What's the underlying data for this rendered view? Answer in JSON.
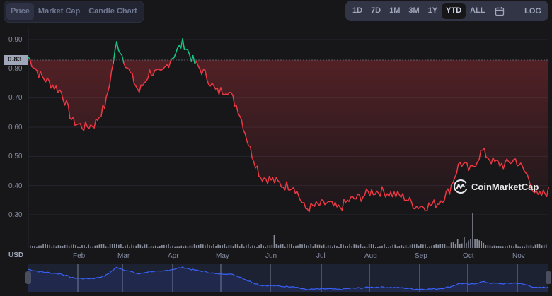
{
  "tabs": [
    {
      "label": "Price",
      "active": true
    },
    {
      "label": "Market Cap",
      "active": false
    },
    {
      "label": "Candle Chart",
      "active": false
    }
  ],
  "ranges": [
    {
      "label": "1D",
      "active": false
    },
    {
      "label": "7D",
      "active": false
    },
    {
      "label": "1M",
      "active": false
    },
    {
      "label": "3M",
      "active": false
    },
    {
      "label": "1Y",
      "active": false
    },
    {
      "label": "YTD",
      "active": true
    },
    {
      "label": "ALL",
      "active": false
    }
  ],
  "calendar_icon": "calendar-icon",
  "log_label": "LOG",
  "current_price_tag": "0.83",
  "currency_label": "USD",
  "watermark": "CoinMarketCap",
  "colors": {
    "up": "#16c784",
    "down": "#ea3943",
    "navigator_line": "#3861fb",
    "background": "#17171a"
  },
  "chart_data": {
    "type": "line",
    "title": "",
    "xlabel": "",
    "ylabel": "USD",
    "ylim": [
      0.28,
      0.92
    ],
    "yticks": [
      "0.90",
      "0.80",
      "0.70",
      "0.60",
      "0.50",
      "0.40",
      "0.30"
    ],
    "xticks": [
      "Feb",
      "Mar",
      "Apr",
      "May",
      "Jun",
      "Jul",
      "Aug",
      "Sep",
      "Oct",
      "Nov"
    ],
    "reference_price": 0.83,
    "grid": true,
    "legend": "none",
    "x": [
      "Jan 1",
      "Jan 8",
      "Jan 15",
      "Jan 22",
      "Jan 29",
      "Feb 5",
      "Feb 12",
      "Feb 19",
      "Feb 26",
      "Mar 5",
      "Mar 12",
      "Mar 19",
      "Mar 26",
      "Apr 2",
      "Apr 9",
      "Apr 16",
      "Apr 23",
      "Apr 30",
      "May 7",
      "May 12",
      "May 20",
      "May 27",
      "Jun 3",
      "Jun 10",
      "Jun 17",
      "Jun 24",
      "Jul 1",
      "Jul 8",
      "Jul 15",
      "Jul 22",
      "Jul 29",
      "Aug 5",
      "Aug 12",
      "Aug 19",
      "Aug 26",
      "Sep 2",
      "Sep 9",
      "Sep 16",
      "Sep 23",
      "Sep 27",
      "Oct 4",
      "Oct 11",
      "Oct 18",
      "Oct 25",
      "Nov 1",
      "Nov 5",
      "Nov 10",
      "Nov 14"
    ],
    "series": [
      {
        "name": "Price",
        "values": [
          0.84,
          0.78,
          0.75,
          0.72,
          0.62,
          0.6,
          0.61,
          0.68,
          0.89,
          0.8,
          0.72,
          0.79,
          0.78,
          0.84,
          0.89,
          0.82,
          0.78,
          0.72,
          0.73,
          0.66,
          0.53,
          0.43,
          0.42,
          0.4,
          0.4,
          0.32,
          0.33,
          0.34,
          0.32,
          0.35,
          0.36,
          0.38,
          0.38,
          0.37,
          0.36,
          0.33,
          0.33,
          0.34,
          0.38,
          0.48,
          0.45,
          0.52,
          0.48,
          0.47,
          0.49,
          0.44,
          0.36,
          0.38
        ]
      }
    ],
    "volume": "small bars under price, spikes near mid-Jul, Sep-end, and Oct start"
  }
}
